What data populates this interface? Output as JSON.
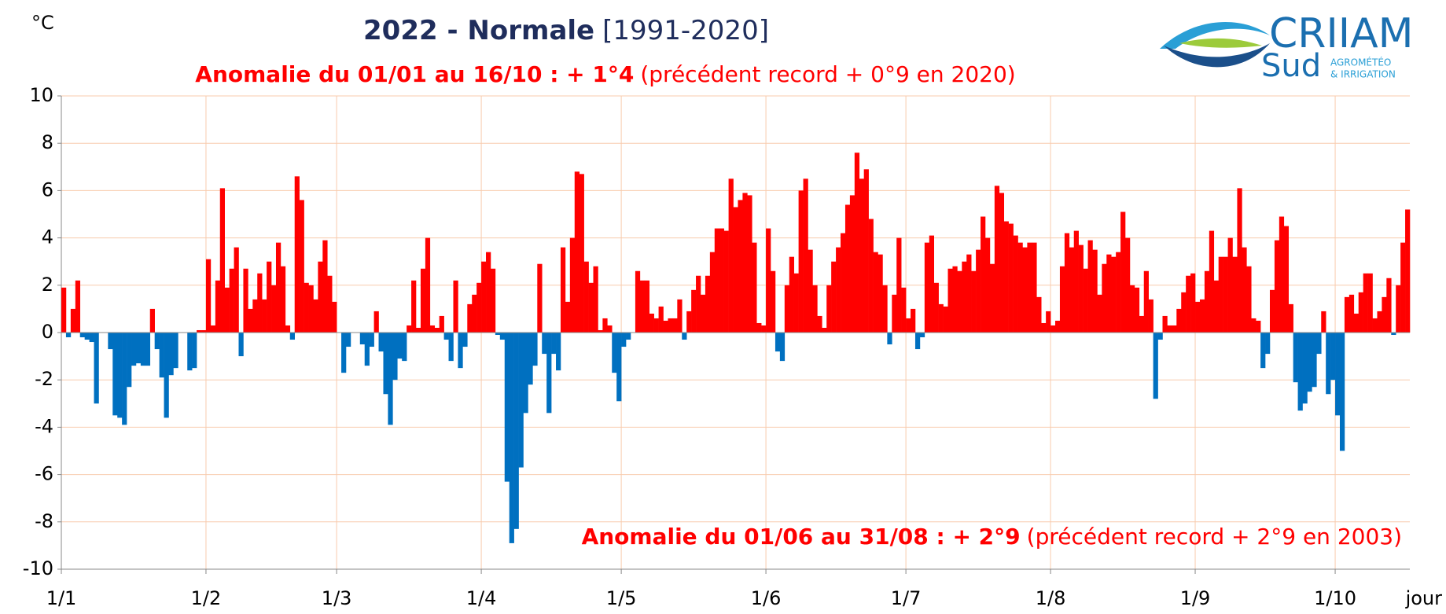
{
  "chart_data": {
    "type": "bar",
    "title": "2022 - Normale",
    "title_period": "[1991-2020]",
    "subtitle": {
      "bold": "Anomalie du 01/01 au 16/10 : + 1°4",
      "normal": "(précédent record + 0°9 en 2020)"
    },
    "annotation": {
      "bold": "Anomalie du 01/06 au 31/08 : + 2°9",
      "normal": "(précédent record + 2°9 en 2003)"
    },
    "y_unit": "°C",
    "x_label": "jour",
    "logo": {
      "name": "CRIIAM",
      "region": "Sud",
      "line1": "AGROMÉTÉO",
      "line2": "& IRRIGATION"
    },
    "positive_color": "#ff0000",
    "negative_color": "#0070c0",
    "grid": true,
    "grid_color": "#f8cbad",
    "ylim": [
      -10,
      10
    ],
    "yticks": [
      -10,
      -8,
      -6,
      -4,
      -2,
      0,
      2,
      4,
      6,
      8,
      10
    ],
    "categories": [
      "1/1",
      null,
      null,
      null,
      null,
      null,
      null,
      null,
      null,
      null,
      null,
      null,
      null,
      null,
      null,
      null,
      null,
      null,
      null,
      null,
      null,
      null,
      null,
      null,
      null,
      null,
      null,
      null,
      null,
      null,
      null,
      "1/2",
      null,
      null,
      null,
      null,
      null,
      null,
      null,
      null,
      null,
      null,
      null,
      null,
      null,
      null,
      null,
      null,
      null,
      null,
      null,
      null,
      null,
      null,
      null,
      null,
      null,
      null,
      null,
      "1/3",
      null,
      null,
      null,
      null,
      null,
      null,
      null,
      null,
      null,
      null,
      null,
      null,
      null,
      null,
      null,
      null,
      null,
      null,
      null,
      null,
      null,
      null,
      null,
      null,
      null,
      null,
      null,
      null,
      null,
      null,
      "1/4",
      null,
      null,
      null,
      null,
      null,
      null,
      null,
      null,
      null,
      null,
      null,
      null,
      null,
      null,
      null,
      null,
      null,
      null,
      null,
      null,
      null,
      null,
      null,
      null,
      null,
      null,
      null,
      null,
      null,
      "1/5",
      null,
      null,
      null,
      null,
      null,
      null,
      null,
      null,
      null,
      null,
      null,
      null,
      null,
      null,
      null,
      null,
      null,
      null,
      null,
      null,
      null,
      null,
      null,
      null,
      null,
      null,
      null,
      null,
      null,
      null,
      "1/6",
      null,
      null,
      null,
      null,
      null,
      null,
      null,
      null,
      null,
      null,
      null,
      null,
      null,
      null,
      null,
      null,
      null,
      null,
      null,
      null,
      null,
      null,
      null,
      null,
      null,
      null,
      null,
      null,
      null,
      "1/7",
      null,
      null,
      null,
      null,
      null,
      null,
      null,
      null,
      null,
      null,
      null,
      null,
      null,
      null,
      null,
      null,
      null,
      null,
      null,
      null,
      null,
      null,
      null,
      null,
      null,
      null,
      null,
      null,
      null,
      null,
      "1/8",
      null,
      null,
      null,
      null,
      null,
      null,
      null,
      null,
      null,
      null,
      null,
      null,
      null,
      null,
      null,
      null,
      null,
      null,
      null,
      null,
      null,
      null,
      null,
      null,
      null,
      null,
      null,
      null,
      null,
      null,
      "1/9",
      null,
      null,
      null,
      null,
      null,
      null,
      null,
      null,
      null,
      null,
      null,
      null,
      null,
      null,
      null,
      null,
      null,
      null,
      null,
      null,
      null,
      null,
      null,
      null,
      null,
      null,
      null,
      null,
      null,
      "1/10",
      null,
      null,
      null,
      null,
      null,
      null,
      null,
      null,
      null,
      null,
      null,
      null,
      null,
      null,
      null
    ],
    "values": [
      1.9,
      -0.2,
      1.0,
      2.2,
      -0.2,
      -0.3,
      -0.4,
      -3.0,
      0,
      0,
      -0.7,
      -3.5,
      -3.6,
      -3.9,
      -2.3,
      -1.4,
      -1.3,
      -1.4,
      -1.4,
      1.0,
      -0.7,
      -1.9,
      -3.6,
      -1.8,
      -1.5,
      0,
      0,
      -1.6,
      -1.5,
      0.1,
      0.1,
      3.1,
      0.3,
      2.2,
      6.1,
      1.9,
      2.7,
      3.6,
      -1.0,
      2.7,
      1.0,
      1.4,
      2.5,
      1.4,
      3.0,
      2.0,
      3.8,
      2.8,
      0.3,
      -0.3,
      6.6,
      5.6,
      2.1,
      2.0,
      1.4,
      3.0,
      3.9,
      2.4,
      1.3,
      0,
      -1.7,
      -0.6,
      0,
      0,
      -0.5,
      -1.4,
      -0.6,
      0.9,
      -0.8,
      -2.6,
      -3.9,
      -2.0,
      -1.1,
      -1.2,
      0.3,
      2.2,
      0.2,
      2.7,
      4.0,
      0.3,
      0.2,
      0.7,
      -0.3,
      -1.2,
      2.2,
      -1.5,
      -0.6,
      1.2,
      1.6,
      2.1,
      3.0,
      3.4,
      2.7,
      -0.1,
      -0.3,
      -6.3,
      -8.9,
      -8.3,
      -5.7,
      -3.4,
      -2.2,
      -1.4,
      2.9,
      -0.9,
      -3.4,
      -0.9,
      -1.6,
      3.6,
      1.3,
      4.0,
      6.8,
      6.7,
      3.0,
      2.1,
      2.8,
      0.1,
      0.6,
      0.3,
      -1.7,
      -2.9,
      -0.6,
      -0.3,
      0,
      2.6,
      2.2,
      2.2,
      0.8,
      0.6,
      1.1,
      0.5,
      0.6,
      0.6,
      1.4,
      -0.3,
      0.9,
      1.8,
      2.4,
      1.6,
      2.4,
      3.4,
      4.4,
      4.4,
      4.3,
      6.5,
      5.3,
      5.6,
      5.9,
      5.8,
      3.8,
      0.4,
      0.3,
      4.4,
      2.6,
      -0.8,
      -1.2,
      2.0,
      3.2,
      2.5,
      6.0,
      6.5,
      3.5,
      2.0,
      0.7,
      0.2,
      2.0,
      3.0,
      3.6,
      4.2,
      5.4,
      5.8,
      7.6,
      6.5,
      6.9,
      4.8,
      3.4,
      3.3,
      2.0,
      -0.5,
      1.6,
      4.0,
      1.9,
      0.6,
      1.0,
      -0.7,
      -0.2,
      3.8,
      4.1,
      2.1,
      1.2,
      1.1,
      2.7,
      2.8,
      2.6,
      3.0,
      3.3,
      2.6,
      3.5,
      4.9,
      4.0,
      2.9,
      6.2,
      5.9,
      4.7,
      4.6,
      4.1,
      3.8,
      3.6,
      3.8,
      3.8,
      1.5,
      0.4,
      0.9,
      0.3,
      0.5,
      2.8,
      4.2,
      3.6,
      4.3,
      3.7,
      2.7,
      3.9,
      3.5,
      1.6,
      2.9,
      3.3,
      3.2,
      3.4,
      5.1,
      4.0,
      2.0,
      1.9,
      0.7,
      2.6,
      1.4,
      -2.8,
      -0.3,
      0.7,
      0.3,
      0.3,
      1.0,
      1.7,
      2.4,
      2.5,
      1.3,
      1.4,
      2.6,
      4.3,
      2.2,
      3.2,
      3.2,
      4.0,
      3.2,
      6.1,
      3.6,
      2.8,
      0.6,
      0.5,
      -1.5,
      -0.9,
      1.8,
      3.9,
      4.9,
      4.5,
      1.2,
      -2.1,
      -3.3,
      -3.0,
      -2.5,
      -2.3,
      -0.9,
      0.9,
      -2.6,
      -2.0,
      -3.5,
      -5.0,
      1.5,
      1.6,
      0.8,
      1.7,
      2.5,
      2.5,
      0.6,
      0.9,
      1.5,
      2.3,
      -0.1,
      2.0,
      3.8,
      5.2
    ]
  }
}
